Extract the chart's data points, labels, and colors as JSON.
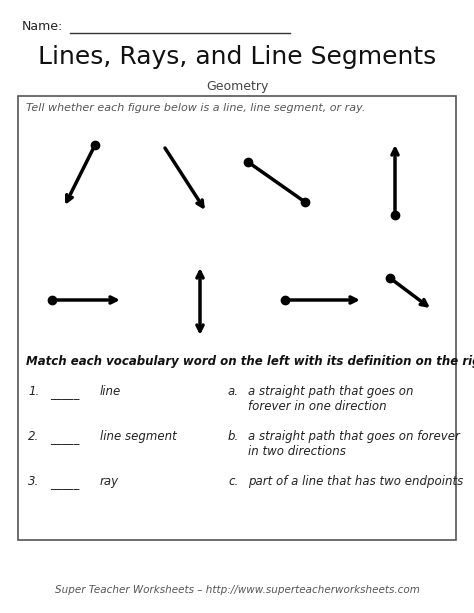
{
  "title": "Lines, Rays, and Line Segments",
  "subtitle": "Geometry",
  "name_label": "Name:",
  "bg_color": "#ffffff",
  "instruction1": "Tell whether each figure below is a line, line segment, or ray.",
  "instruction2": "Match each vocabulary word on the left with its definition on the right.",
  "footer": "Super Teacher Worksheets – http://www.superteacherworksheets.com",
  "match_items": [
    {
      "num": "1.",
      "blank": "_____",
      "word": "line"
    },
    {
      "num": "2.",
      "blank": "_____",
      "word": "line segment"
    },
    {
      "num": "3.",
      "blank": "_____",
      "word": "ray"
    }
  ],
  "def_letters": [
    "a.",
    "b.",
    "c."
  ],
  "def_texts": [
    "a straight path that goes on\nforever in one direction",
    "a straight path that goes on forever\nin two directions",
    "part of a line that has two endpoints"
  ],
  "title_fontsize": 18,
  "subtitle_fontsize": 9,
  "name_fontsize": 9,
  "instr_fontsize": 8,
  "body_fontsize": 8.5,
  "footer_fontsize": 7.5
}
